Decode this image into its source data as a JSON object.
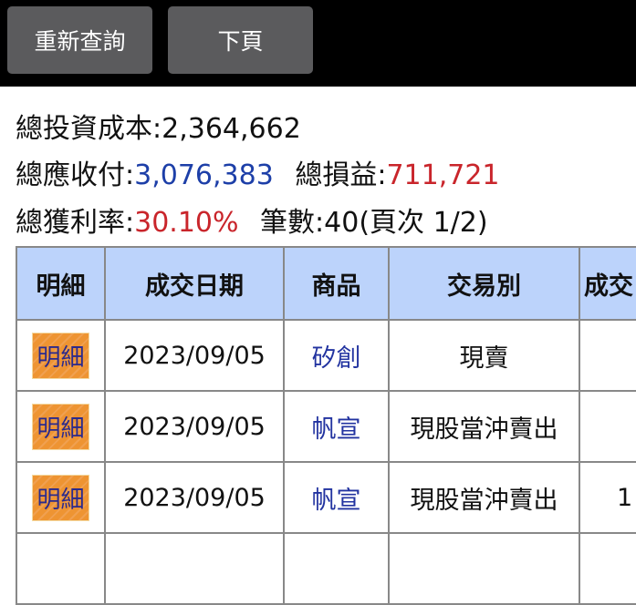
{
  "toolbar": {
    "requery_label": "重新查詢",
    "next_page_label": "下頁"
  },
  "summary": {
    "total_cost_label": "總投資成本:",
    "total_cost": "2,364,662",
    "total_receivable_label": "總應收付:",
    "total_receivable": "3,076,383",
    "total_pnl_label": "總損益:",
    "total_pnl": "711,721",
    "total_return_label": "總獲利率:",
    "total_return": "30.10%",
    "count_label": "筆數:",
    "count": "40(頁次 1/2)"
  },
  "colors": {
    "header_bg": "#bcd3fb",
    "positive": "#c9252b",
    "link": "#1d3fa8",
    "detail_button": "#ee9432"
  },
  "table": {
    "headers": [
      "明細",
      "成交日期",
      "商品",
      "交易別",
      "成交"
    ],
    "rows": [
      {
        "detail": "明細",
        "date": "2023/09/05",
        "product": "矽創",
        "type": "現賣",
        "qty": ""
      },
      {
        "detail": "明細",
        "date": "2023/09/05",
        "product": "帆宣",
        "type": "現股當沖賣出",
        "qty": ""
      },
      {
        "detail": "明細",
        "date": "2023/09/05",
        "product": "帆宣",
        "type": "現股當沖賣出",
        "qty": "1"
      }
    ]
  }
}
